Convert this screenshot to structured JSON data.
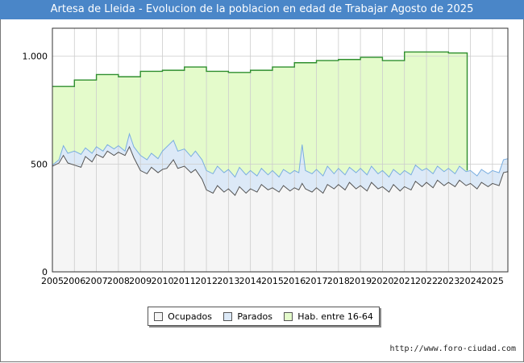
{
  "header": {
    "title": "Artesa de Lleida - Evolucion de la poblacion en edad de Trabajar Agosto de 2025"
  },
  "footer": {
    "source": "http://www.foro-ciudad.com"
  },
  "colors": {
    "title_bg": "#4a86c8",
    "ocupados_fill": "#f5f5f5",
    "ocupados_line": "#555555",
    "parados_fill": "#dce9f7",
    "parados_line": "#7aaee0",
    "hab_fill": "#e4fbcb",
    "hab_line": "#2f8f2f"
  },
  "chart_data": {
    "type": "area",
    "title": "Artesa de Lleida - Evolucion de la poblacion en edad de Trabajar Agosto de 2025",
    "xlabel": "",
    "ylabel": "",
    "xlim": [
      2005,
      2025.7
    ],
    "ylim": [
      0,
      1130
    ],
    "y_ticks": [
      0,
      500,
      1000
    ],
    "y_tick_labels": [
      "0",
      "500",
      "1.000"
    ],
    "x_ticks": [
      "2005",
      "2006",
      "2007",
      "2008",
      "2009",
      "2010",
      "2011",
      "2012",
      "2013",
      "2014",
      "2015",
      "2016",
      "2017",
      "2018",
      "2019",
      "2020",
      "2021",
      "2022",
      "2023",
      "2024",
      "2025"
    ],
    "grid": true,
    "legend_position": "bottom-center",
    "hab_series": {
      "name": "Hab. entre 16-64",
      "years": [
        2005,
        2006,
        2007,
        2008,
        2009,
        2010,
        2011,
        2012,
        2013,
        2014,
        2015,
        2016,
        2017,
        2018,
        2019,
        2020,
        2021,
        2022,
        2023,
        2024,
        2025
      ],
      "values": [
        860,
        890,
        915,
        905,
        930,
        935,
        950,
        930,
        925,
        935,
        950,
        970,
        980,
        985,
        995,
        980,
        1020,
        1020,
        1015,
        null,
        null
      ]
    },
    "parados_series": {
      "name": "Parados",
      "points": [
        [
          2005.0,
          495
        ],
        [
          2005.3,
          520
        ],
        [
          2005.5,
          585
        ],
        [
          2005.7,
          550
        ],
        [
          2006.0,
          560
        ],
        [
          2006.3,
          545
        ],
        [
          2006.5,
          575
        ],
        [
          2006.8,
          550
        ],
        [
          2007.0,
          580
        ],
        [
          2007.3,
          560
        ],
        [
          2007.5,
          590
        ],
        [
          2007.8,
          570
        ],
        [
          2008.0,
          585
        ],
        [
          2008.3,
          560
        ],
        [
          2008.5,
          640
        ],
        [
          2008.7,
          580
        ],
        [
          2009.0,
          540
        ],
        [
          2009.3,
          520
        ],
        [
          2009.5,
          550
        ],
        [
          2009.8,
          525
        ],
        [
          2010.0,
          560
        ],
        [
          2010.2,
          580
        ],
        [
          2010.5,
          610
        ],
        [
          2010.7,
          560
        ],
        [
          2011.0,
          570
        ],
        [
          2011.3,
          535
        ],
        [
          2011.5,
          560
        ],
        [
          2011.8,
          520
        ],
        [
          2012.0,
          470
        ],
        [
          2012.3,
          455
        ],
        [
          2012.5,
          490
        ],
        [
          2012.8,
          460
        ],
        [
          2013.0,
          475
        ],
        [
          2013.3,
          440
        ],
        [
          2013.5,
          485
        ],
        [
          2013.8,
          450
        ],
        [
          2014.0,
          470
        ],
        [
          2014.3,
          445
        ],
        [
          2014.5,
          480
        ],
        [
          2014.8,
          450
        ],
        [
          2015.0,
          470
        ],
        [
          2015.3,
          440
        ],
        [
          2015.5,
          475
        ],
        [
          2015.8,
          455
        ],
        [
          2016.0,
          470
        ],
        [
          2016.2,
          460
        ],
        [
          2016.35,
          590
        ],
        [
          2016.5,
          470
        ],
        [
          2016.8,
          455
        ],
        [
          2017.0,
          475
        ],
        [
          2017.3,
          445
        ],
        [
          2017.5,
          490
        ],
        [
          2017.8,
          455
        ],
        [
          2018.0,
          480
        ],
        [
          2018.3,
          450
        ],
        [
          2018.5,
          485
        ],
        [
          2018.8,
          460
        ],
        [
          2019.0,
          480
        ],
        [
          2019.3,
          450
        ],
        [
          2019.5,
          490
        ],
        [
          2019.8,
          455
        ],
        [
          2020.0,
          470
        ],
        [
          2020.3,
          440
        ],
        [
          2020.5,
          475
        ],
        [
          2020.8,
          450
        ],
        [
          2021.0,
          470
        ],
        [
          2021.3,
          450
        ],
        [
          2021.5,
          495
        ],
        [
          2021.8,
          470
        ],
        [
          2022.0,
          480
        ],
        [
          2022.3,
          455
        ],
        [
          2022.5,
          490
        ],
        [
          2022.8,
          465
        ],
        [
          2023.0,
          480
        ],
        [
          2023.3,
          455
        ],
        [
          2023.5,
          490
        ],
        [
          2023.8,
          465
        ],
        [
          2024.0,
          470
        ],
        [
          2024.3,
          445
        ],
        [
          2024.5,
          475
        ],
        [
          2024.8,
          455
        ],
        [
          2025.0,
          470
        ],
        [
          2025.3,
          460
        ],
        [
          2025.5,
          520
        ],
        [
          2025.7,
          525
        ]
      ]
    },
    "ocupados_series": {
      "name": "Ocupados",
      "points": [
        [
          2005.0,
          490
        ],
        [
          2005.3,
          505
        ],
        [
          2005.5,
          540
        ],
        [
          2005.7,
          505
        ],
        [
          2006.0,
          495
        ],
        [
          2006.3,
          485
        ],
        [
          2006.5,
          535
        ],
        [
          2006.8,
          510
        ],
        [
          2007.0,
          545
        ],
        [
          2007.3,
          530
        ],
        [
          2007.5,
          560
        ],
        [
          2007.8,
          540
        ],
        [
          2008.0,
          555
        ],
        [
          2008.3,
          540
        ],
        [
          2008.5,
          580
        ],
        [
          2008.7,
          530
        ],
        [
          2009.0,
          470
        ],
        [
          2009.3,
          455
        ],
        [
          2009.5,
          485
        ],
        [
          2009.8,
          460
        ],
        [
          2010.0,
          475
        ],
        [
          2010.2,
          480
        ],
        [
          2010.5,
          520
        ],
        [
          2010.7,
          480
        ],
        [
          2011.0,
          490
        ],
        [
          2011.3,
          460
        ],
        [
          2011.5,
          475
        ],
        [
          2011.8,
          430
        ],
        [
          2012.0,
          380
        ],
        [
          2012.3,
          365
        ],
        [
          2012.5,
          400
        ],
        [
          2012.8,
          370
        ],
        [
          2013.0,
          385
        ],
        [
          2013.3,
          355
        ],
        [
          2013.5,
          395
        ],
        [
          2013.8,
          365
        ],
        [
          2014.0,
          385
        ],
        [
          2014.3,
          370
        ],
        [
          2014.5,
          405
        ],
        [
          2014.8,
          380
        ],
        [
          2015.0,
          390
        ],
        [
          2015.3,
          370
        ],
        [
          2015.5,
          400
        ],
        [
          2015.8,
          375
        ],
        [
          2016.0,
          390
        ],
        [
          2016.2,
          380
        ],
        [
          2016.35,
          410
        ],
        [
          2016.5,
          385
        ],
        [
          2016.8,
          370
        ],
        [
          2017.0,
          390
        ],
        [
          2017.3,
          365
        ],
        [
          2017.5,
          405
        ],
        [
          2017.8,
          385
        ],
        [
          2018.0,
          405
        ],
        [
          2018.3,
          380
        ],
        [
          2018.5,
          415
        ],
        [
          2018.8,
          385
        ],
        [
          2019.0,
          400
        ],
        [
          2019.3,
          375
        ],
        [
          2019.5,
          415
        ],
        [
          2019.8,
          385
        ],
        [
          2020.0,
          395
        ],
        [
          2020.3,
          370
        ],
        [
          2020.5,
          405
        ],
        [
          2020.8,
          375
        ],
        [
          2021.0,
          395
        ],
        [
          2021.3,
          380
        ],
        [
          2021.5,
          420
        ],
        [
          2021.8,
          395
        ],
        [
          2022.0,
          415
        ],
        [
          2022.3,
          390
        ],
        [
          2022.5,
          425
        ],
        [
          2022.8,
          400
        ],
        [
          2023.0,
          415
        ],
        [
          2023.3,
          395
        ],
        [
          2023.5,
          425
        ],
        [
          2023.8,
          400
        ],
        [
          2024.0,
          410
        ],
        [
          2024.3,
          385
        ],
        [
          2024.5,
          415
        ],
        [
          2024.8,
          395
        ],
        [
          2025.0,
          410
        ],
        [
          2025.3,
          400
        ],
        [
          2025.5,
          460
        ],
        [
          2025.7,
          465
        ]
      ]
    },
    "hab_drop": {
      "x": 2023.85,
      "from": 1015,
      "to": 470
    },
    "legend": [
      "Ocupados",
      "Parados",
      "Hab. entre 16-64"
    ]
  }
}
